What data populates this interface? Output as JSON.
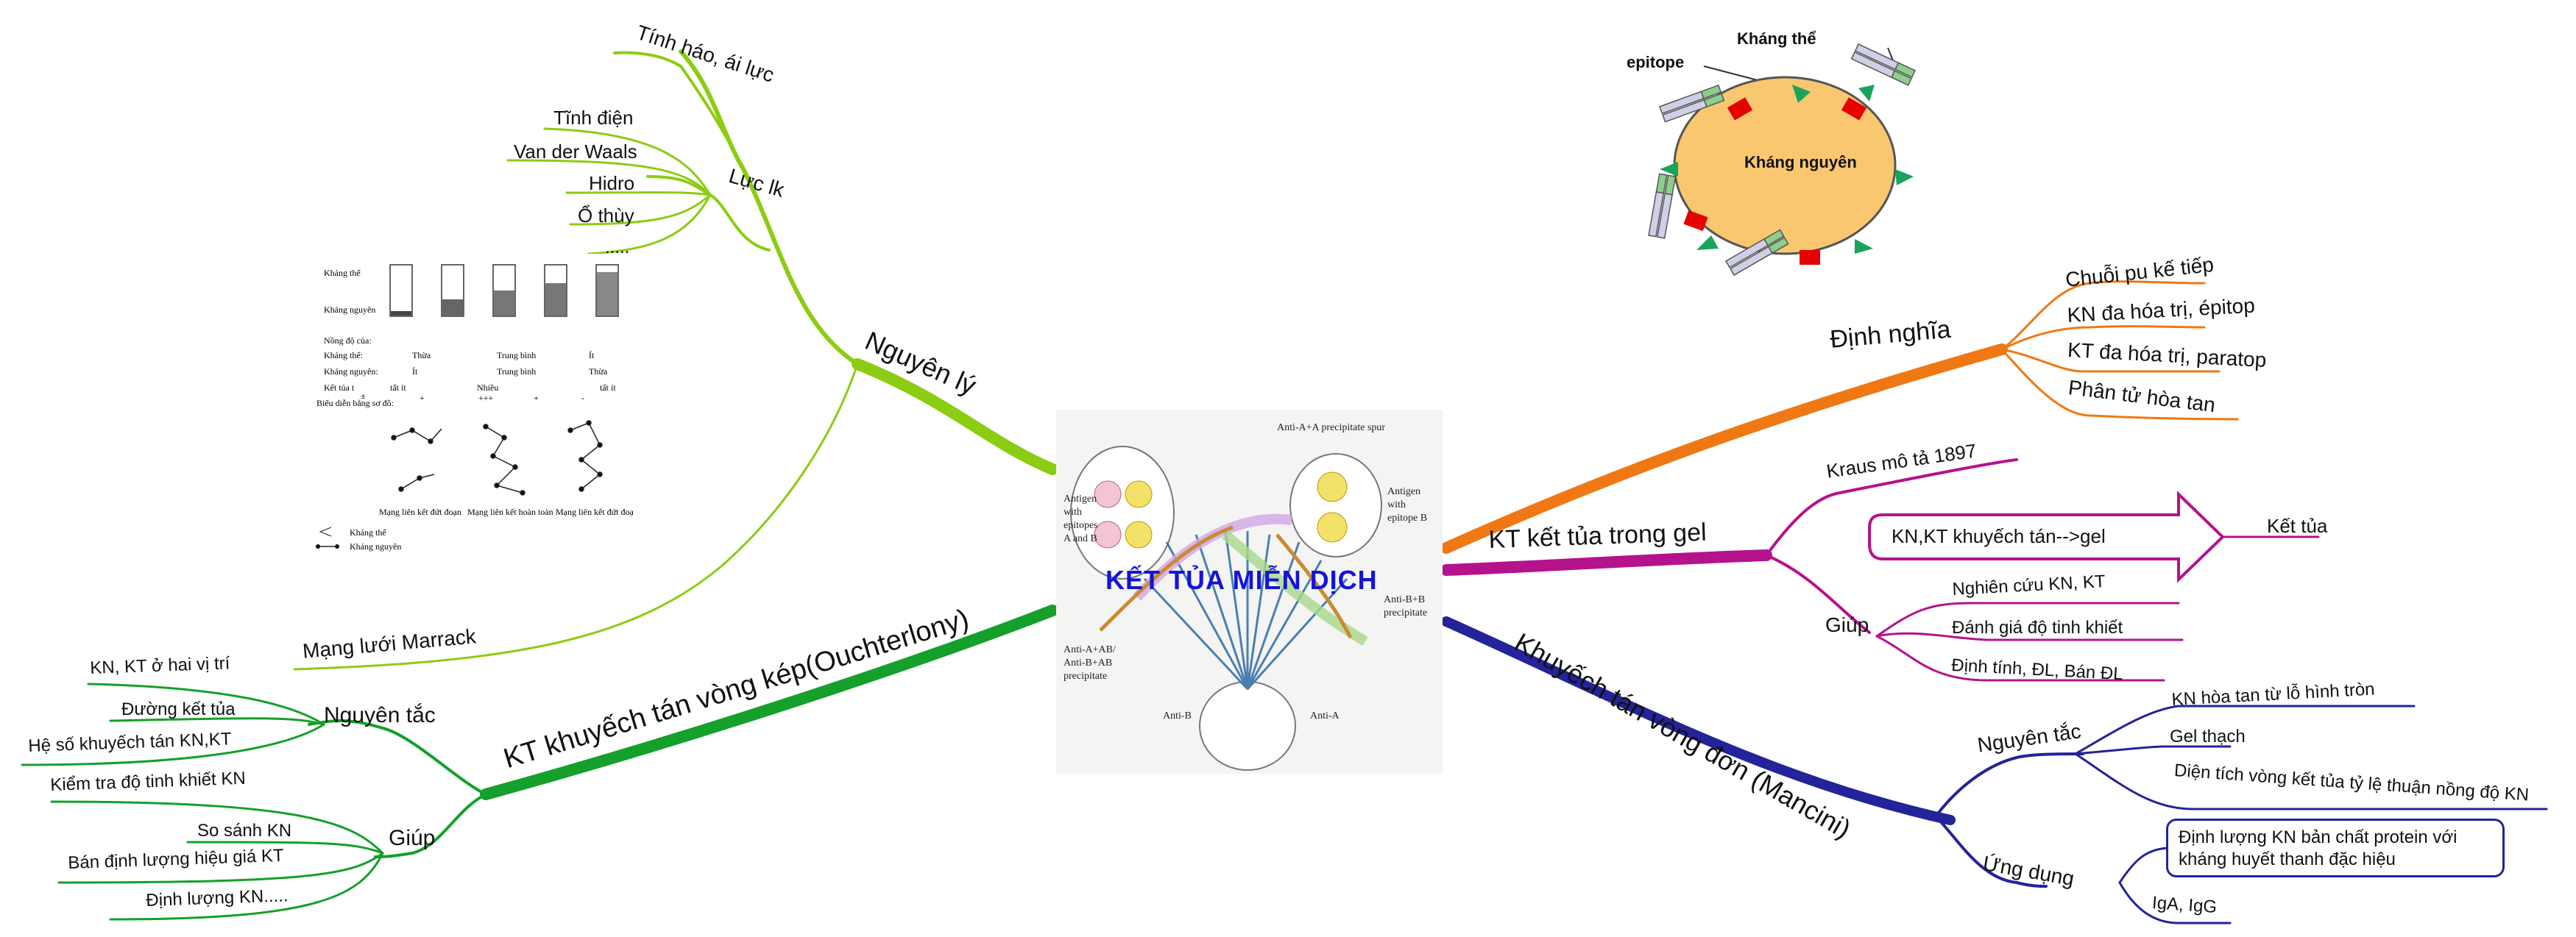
{
  "center": {
    "title": "KẾT TỦA MIỄN DỊCH",
    "figure_texts": [
      "Anti-A+A precipitate spur",
      "Antigen with epitopes A and B",
      "Antigen with epitope B",
      "Anti-A+AB/ Anti-B+AB precipitate",
      "Anti-B+B precipitate",
      "Anti-B",
      "Anti-A"
    ]
  },
  "colors": {
    "nguyen_ly": "#8ccc12",
    "ouchterlony": "#14a02a",
    "dinh_nghia": "#f07814",
    "gel": "#b4138c",
    "mancini": "#23239a",
    "title": "#1414d8"
  },
  "branches": {
    "nguyen_ly": {
      "label": "Nguyên lý",
      "children": {
        "tinh_hao": "Tính háo, ái lực",
        "luc_lk": {
          "label": "Lực lk",
          "items": [
            "Tĩnh điện",
            "Van der Waals",
            "Hidro",
            "Ổ thùy",
            "....."
          ]
        },
        "marrack": "Mạng lưới Marrack"
      }
    },
    "ouchterlony": {
      "label": "KT khuyếch tán vòng kép(Ouchterlony)",
      "nguyen_tac": {
        "label": "Nguyên tắc",
        "items": [
          "KN, KT ở hai vị trí",
          "Đường kết tủa",
          "Hệ số khuyếch tán KN,KT"
        ]
      },
      "giup": {
        "label": "Giúp",
        "items": [
          "Kiểm tra độ tinh khiết KN",
          "So sánh KN",
          "Bán định lượng hiệu giá KT",
          "Định lượng KN....."
        ]
      }
    },
    "dinh_nghia": {
      "label": "Định nghĩa",
      "items": [
        "Chuỗi pu kế tiếp",
        "KN đa hóa trị, épitop",
        "KT đa hóa trị, paratop",
        "Phân tử hòa tan"
      ]
    },
    "gel": {
      "label": "KT kết tủa trong gel",
      "kraus": "Kraus mô tả 1897",
      "arrow_text": "KN,KT khuyếch tán-->gel",
      "arrow_target": "Kết tủa",
      "giup": {
        "label": "Giúp",
        "items": [
          "Nghiên cứu KN, KT",
          "Đánh giá độ tinh khiết",
          "Định tính, ĐL, Bán ĐL"
        ]
      }
    },
    "mancini": {
      "label": "Khuyếch tán vòng đơn (Mancini)",
      "nguyen_tac": {
        "label": "Nguyên tắc",
        "items": [
          "KN hòa tan từ lỗ hình tròn",
          "Gel thạch",
          "Diện tích vòng kết tủa tỷ lệ thuận nồng độ KN"
        ]
      },
      "ung_dung": {
        "label": "Ứng dụng",
        "box": "Định lượng KN bản chất protein với kháng huyết thanh đặc hiệu",
        "items": [
          "IgA, IgG"
        ]
      }
    }
  },
  "fig_antigen": {
    "khang_the": "Kháng thể",
    "epitope": "epitope",
    "khang_nguyen": "Kháng nguyên"
  },
  "fig_lattice": {
    "row_labels": [
      "Kháng thể",
      "Kháng nguyên"
    ],
    "nong_do": "Nồng độ của:",
    "rows": [
      [
        "Kháng thể:",
        "Thừa",
        "Trung bình",
        "Ít"
      ],
      [
        "Kháng nguyên:",
        "Ít",
        "Trung bình",
        "Thừa"
      ],
      [
        "Kết tủa t",
        "tất ít",
        "Nhiều",
        "tất ít"
      ]
    ],
    "signs": [
      "±",
      "+",
      "+++",
      "+",
      "-"
    ],
    "bieu_dien": "Biểu diễn bằng sơ đồ:",
    "captions": [
      "Mạng liên kết đứt đoạn",
      "Mạng liên kết hoàn toàn",
      "Mạng liên kết đứt đoạn"
    ],
    "legend": [
      "Kháng thể",
      "Kháng nguyên"
    ]
  }
}
